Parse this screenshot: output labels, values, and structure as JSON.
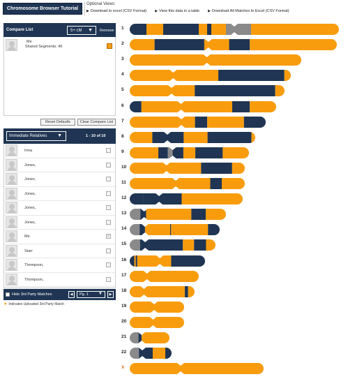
{
  "header": {
    "tutorial_label": "Chromosome Browser Tutorial",
    "optional_views_label": "Optional Views:",
    "links": [
      "Download to excel (CSV Format)",
      "View this data in a table",
      "Download All Matches to Excel (CSV Format)"
    ]
  },
  "compare": {
    "title": "Compare List",
    "cm_value": "5+ cM",
    "remove_label": "Remove",
    "item": {
      "name": "Me",
      "shared_segments": "Shared Segments: 49"
    }
  },
  "buttons": {
    "reset": "Reset Defaults",
    "clear": "Clear Compare List"
  },
  "relatives": {
    "filter": "Immediate Relatives",
    "count": "1 - 10 of 10",
    "rows": [
      {
        "name": "Irma",
        "checked": false
      },
      {
        "name": "Jones,",
        "checked": false
      },
      {
        "name": "Jones,",
        "checked": false
      },
      {
        "name": "Jones,",
        "checked": false
      },
      {
        "name": "Jones,",
        "checked": false
      },
      {
        "name": "Jones,",
        "checked": false
      },
      {
        "name": "Me",
        "checked": true
      },
      {
        "name": "Starr",
        "checked": false
      },
      {
        "name": "Thompson,",
        "checked": false
      },
      {
        "name": "Thompson,",
        "checked": false
      }
    ]
  },
  "pager": {
    "hide_label": "Hide 3rd Party Matches",
    "page": "Pg. 1",
    "prev_icon": "◀",
    "next_icon": "▶"
  },
  "footnote": "Indicates Uploaded 3rd Party Match",
  "colors": {
    "navy": "#1f3553",
    "orange": "#f89c0e",
    "gray": "#8a8a8a"
  },
  "chromosomes": [
    {
      "label": "1",
      "length": 1.0,
      "centromere": 0.5,
      "segments": [
        [
          0,
          0.08,
          "n"
        ],
        [
          0.08,
          0.16,
          "o"
        ],
        [
          0.16,
          0.33,
          "n"
        ],
        [
          0.33,
          0.37,
          "o"
        ],
        [
          0.37,
          0.39,
          "n"
        ],
        [
          0.39,
          0.4,
          "o"
        ],
        [
          0.46,
          0.58,
          "g"
        ],
        [
          0.58,
          1.0,
          "o"
        ],
        [
          0.4,
          0.46,
          "o"
        ]
      ]
    },
    {
      "label": "2",
      "length": 0.99,
      "centromere": 0.38,
      "segments": [
        [
          0,
          0.12,
          "o"
        ],
        [
          0.12,
          0.36,
          "n"
        ],
        [
          0.36,
          0.48,
          "o"
        ],
        [
          0.48,
          0.58,
          "n"
        ],
        [
          0.58,
          1.0,
          "o"
        ]
      ]
    },
    {
      "label": "3",
      "length": 0.82,
      "centromere": 0.45,
      "segments": [
        [
          0,
          1.0,
          "o"
        ]
      ]
    },
    {
      "label": "4",
      "length": 0.77,
      "centromere": 0.27,
      "segments": [
        [
          0,
          0.55,
          "o"
        ],
        [
          0.55,
          0.96,
          "n"
        ],
        [
          0.96,
          1.0,
          "o"
        ]
      ]
    },
    {
      "label": "5",
      "length": 0.74,
      "centromere": 0.27,
      "segments": [
        [
          0,
          0.42,
          "o"
        ],
        [
          0.42,
          0.94,
          "n"
        ],
        [
          0.94,
          1.0,
          "o"
        ]
      ]
    },
    {
      "label": "6",
      "length": 0.7,
      "centromere": 0.35,
      "segments": [
        [
          0,
          0.08,
          "n"
        ],
        [
          0.08,
          0.7,
          "o"
        ],
        [
          0.7,
          0.82,
          "n"
        ],
        [
          0.82,
          1.0,
          "o"
        ]
      ]
    },
    {
      "label": "7",
      "length": 0.65,
      "centromere": 0.38,
      "segments": [
        [
          0,
          0.48,
          "o"
        ],
        [
          0.48,
          0.57,
          "n"
        ],
        [
          0.57,
          0.84,
          "o"
        ],
        [
          0.84,
          1.0,
          "n"
        ]
      ]
    },
    {
      "label": "8",
      "length": 0.6,
      "centromere": 0.3,
      "segments": [
        [
          0,
          0.18,
          "o"
        ],
        [
          0.18,
          0.43,
          "n"
        ],
        [
          0.43,
          0.62,
          "o"
        ],
        [
          0.62,
          0.97,
          "n"
        ],
        [
          0.97,
          1.0,
          "o"
        ]
      ]
    },
    {
      "label": "9",
      "length": 0.57,
      "centromere": 0.36,
      "segments": [
        [
          0,
          0.24,
          "o"
        ],
        [
          0.24,
          0.32,
          "n"
        ],
        [
          0.32,
          0.36,
          "g"
        ],
        [
          0.36,
          0.45,
          "n"
        ],
        [
          0.45,
          0.55,
          "o"
        ],
        [
          0.55,
          0.78,
          "n"
        ],
        [
          0.78,
          1.0,
          "o"
        ]
      ]
    },
    {
      "label": "10",
      "length": 0.55,
      "centromere": 0.32,
      "segments": [
        [
          0,
          0.62,
          "o"
        ],
        [
          0.62,
          0.89,
          "n"
        ],
        [
          0.89,
          1.0,
          "o"
        ]
      ]
    },
    {
      "label": "11",
      "length": 0.55,
      "centromere": 0.4,
      "segments": [
        [
          0,
          0.7,
          "o"
        ],
        [
          0.7,
          0.8,
          "n"
        ],
        [
          0.8,
          1.0,
          "o"
        ]
      ]
    },
    {
      "label": "12",
      "length": 0.54,
      "centromere": 0.26,
      "segments": [
        [
          0,
          0.12,
          "n"
        ],
        [
          0.12,
          0.46,
          "n"
        ],
        [
          0.46,
          1.0,
          "o"
        ]
      ]
    },
    {
      "label": "13",
      "length": 0.46,
      "centromere": 0.15,
      "segments": [
        [
          0,
          0.11,
          "g"
        ],
        [
          0.11,
          0.17,
          "n"
        ],
        [
          0.17,
          0.64,
          "o"
        ],
        [
          0.64,
          0.79,
          "n"
        ],
        [
          0.79,
          1.0,
          "o"
        ]
      ]
    },
    {
      "label": "14",
      "length": 0.43,
      "centromere": 0.17,
      "segments": [
        [
          0,
          0.11,
          "g"
        ],
        [
          0.11,
          0.17,
          "n"
        ],
        [
          0.17,
          0.45,
          "o"
        ],
        [
          0.45,
          0.46,
          "n"
        ],
        [
          0.46,
          0.87,
          "o"
        ],
        [
          0.87,
          1.0,
          "n"
        ]
      ]
    },
    {
      "label": "15",
      "length": 0.41,
      "centromere": 0.18,
      "segments": [
        [
          0,
          0.12,
          "g"
        ],
        [
          0.12,
          0.22,
          "n"
        ],
        [
          0.22,
          0.62,
          "n"
        ],
        [
          0.62,
          0.75,
          "o"
        ],
        [
          0.75,
          0.89,
          "n"
        ],
        [
          0.89,
          1.0,
          "o"
        ]
      ]
    },
    {
      "label": "16",
      "length": 0.36,
      "centromere": 0.4,
      "segments": [
        [
          0,
          0.06,
          "n"
        ],
        [
          0.06,
          0.08,
          "o"
        ],
        [
          0.08,
          0.1,
          "n"
        ],
        [
          0.1,
          0.55,
          "o"
        ],
        [
          0.55,
          1.0,
          "n"
        ]
      ]
    },
    {
      "label": "17",
      "length": 0.33,
      "centromere": 0.25,
      "segments": [
        [
          0,
          1.0,
          "o"
        ]
      ]
    },
    {
      "label": "18",
      "length": 0.31,
      "centromere": 0.22,
      "segments": [
        [
          0,
          0.85,
          "o"
        ],
        [
          0.85,
          0.9,
          "n"
        ],
        [
          0.9,
          1.0,
          "o"
        ]
      ]
    },
    {
      "label": "19",
      "length": 0.26,
      "centromere": 0.45,
      "segments": [
        [
          0,
          1.0,
          "o"
        ]
      ]
    },
    {
      "label": "20",
      "length": 0.26,
      "centromere": 0.43,
      "segments": [
        [
          0,
          1.0,
          "o"
        ]
      ]
    },
    {
      "label": "21",
      "length": 0.19,
      "centromere": 0.3,
      "segments": [
        [
          0,
          0.22,
          "g"
        ],
        [
          0.22,
          0.3,
          "n"
        ],
        [
          0.3,
          1.0,
          "o"
        ]
      ]
    },
    {
      "label": "22",
      "length": 0.2,
      "centromere": 0.3,
      "segments": [
        [
          0,
          0.22,
          "g"
        ],
        [
          0.22,
          0.55,
          "n"
        ],
        [
          0.55,
          0.85,
          "o"
        ],
        [
          0.85,
          1.0,
          "n"
        ]
      ]
    },
    {
      "label": "X",
      "length": 0.64,
      "centromere": 0.38,
      "segments": [
        [
          0,
          1.0,
          "o"
        ]
      ]
    }
  ]
}
